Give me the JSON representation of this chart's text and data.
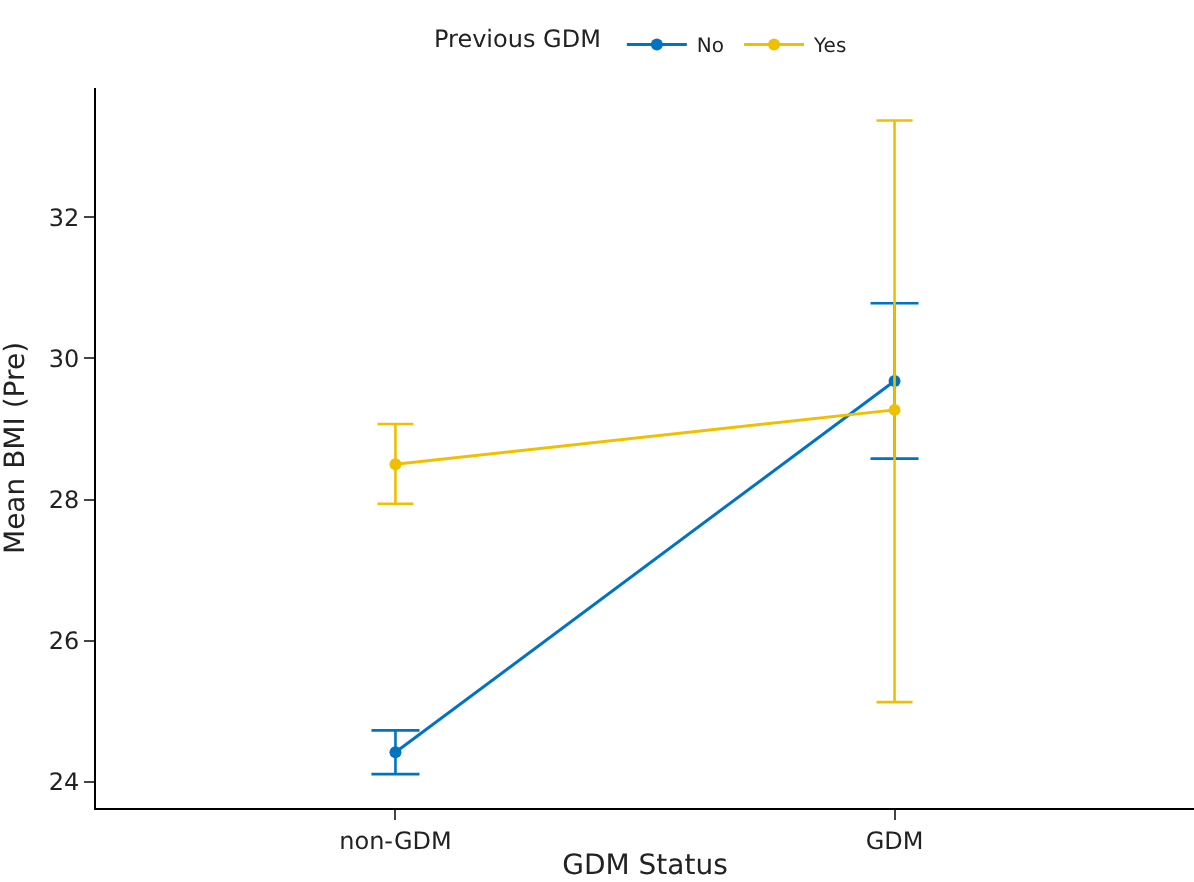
{
  "chart_data": {
    "type": "line",
    "xlabel": "GDM Status",
    "ylabel": "Mean BMI (Pre)",
    "legend_title": "Previous GDM",
    "categories": [
      "non-GDM",
      "GDM"
    ],
    "series": [
      {
        "name": "No",
        "color": "#0073c2",
        "values": [
          24.42,
          29.68
        ],
        "errors": [
          [
            24.11,
            24.73
          ],
          [
            28.58,
            30.78
          ]
        ]
      },
      {
        "name": "Yes",
        "color": "#efc000",
        "values": [
          28.5,
          29.27
        ],
        "errors": [
          [
            27.94,
            29.07
          ],
          [
            25.13,
            33.37
          ]
        ]
      }
    ],
    "ylim": [
      23.63,
      33.83
    ],
    "yticks": [
      24,
      26,
      28,
      30,
      32
    ],
    "legend": "top",
    "marker": "circle",
    "line_style": "solid"
  }
}
